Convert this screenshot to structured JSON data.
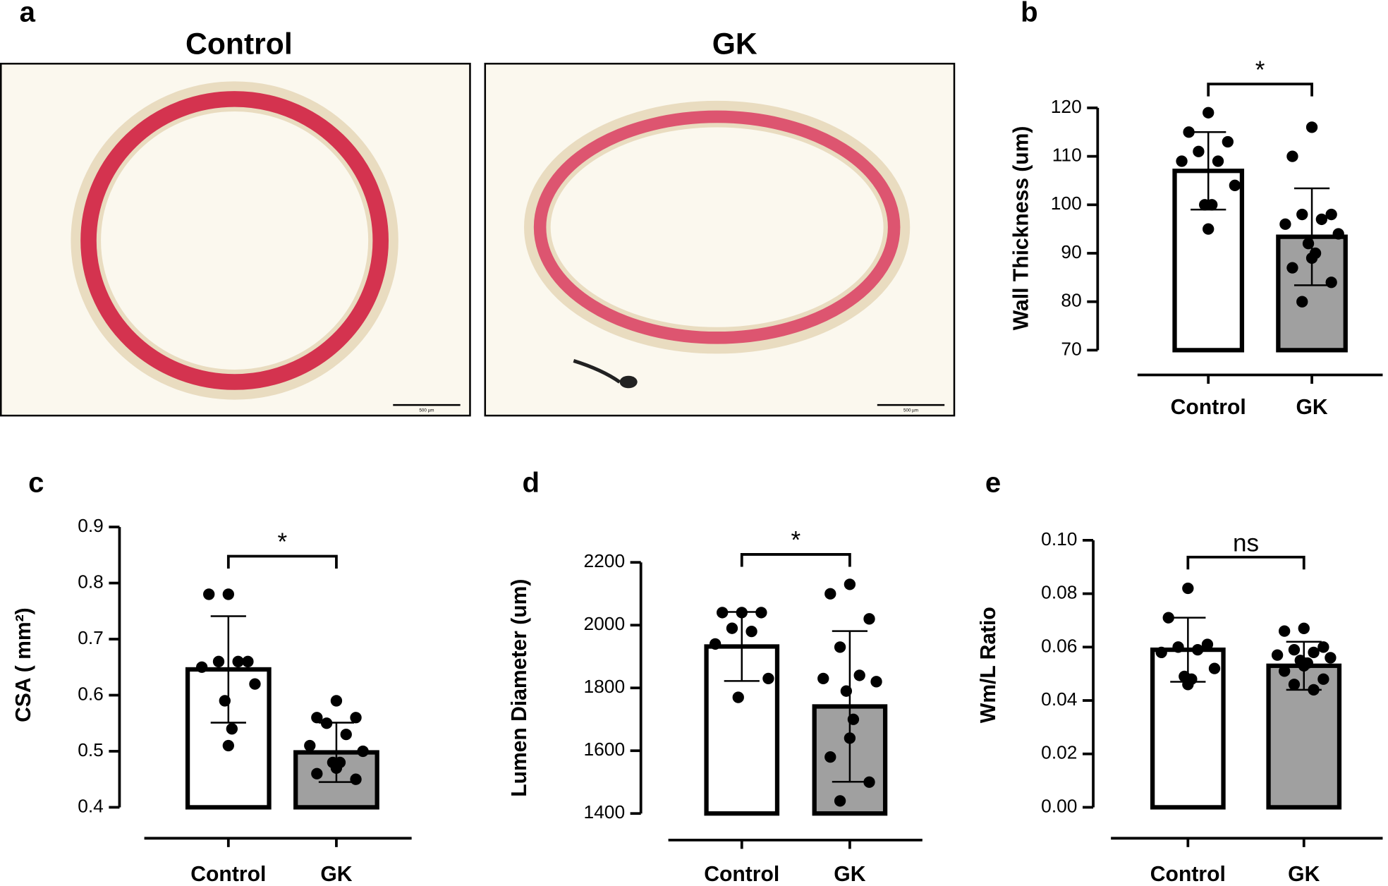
{
  "panel_a": {
    "label": "a",
    "titles": [
      "Control",
      "GK"
    ],
    "scale_bar": "500 µm"
  },
  "chart_data": [
    {
      "type": "bar",
      "panel": "b",
      "ylabel": "Wall Thickness (um)",
      "categories": [
        "Control",
        "GK"
      ],
      "values": [
        107,
        93.4
      ],
      "errors": [
        8,
        10
      ],
      "colors": [
        "#ffffff",
        "#a0a0a0"
      ],
      "point_color": "#000000",
      "points": [
        [
          119,
          115,
          113,
          111,
          109,
          109,
          104,
          100,
          100,
          95
        ],
        [
          116,
          110,
          98,
          98,
          97,
          96,
          94,
          92,
          90,
          89,
          87,
          84,
          80
        ]
      ],
      "ylim": [
        70,
        120
      ],
      "yticks": [
        70,
        80,
        90,
        100,
        110,
        120
      ],
      "significance": "*"
    },
    {
      "type": "bar",
      "panel": "c",
      "ylabel": "CSA ( mm²)",
      "categories": [
        "Control",
        "GK"
      ],
      "values": [
        0.646,
        0.498
      ],
      "errors": [
        0.095,
        0.053
      ],
      "colors": [
        "#ffffff",
        "#a0a0a0"
      ],
      "point_color": "#000000",
      "points": [
        [
          0.78,
          0.78,
          0.66,
          0.66,
          0.66,
          0.65,
          0.62,
          0.59,
          0.54,
          0.51
        ],
        [
          0.59,
          0.56,
          0.56,
          0.55,
          0.53,
          0.51,
          0.5,
          0.48,
          0.48,
          0.47,
          0.46,
          0.45
        ]
      ],
      "ylim": [
        0.4,
        0.9
      ],
      "yticks": [
        0.4,
        0.5,
        0.6,
        0.7,
        0.8,
        0.9
      ],
      "significance": "*"
    },
    {
      "type": "bar",
      "panel": "d",
      "ylabel": "Lumen Diameter (um)",
      "categories": [
        "Control",
        "GK"
      ],
      "values": [
        1932,
        1741
      ],
      "errors": [
        110,
        240
      ],
      "colors": [
        "#ffffff",
        "#a0a0a0"
      ],
      "point_color": "#000000",
      "points": [
        [
          2040,
          2040,
          2040,
          1990,
          1980,
          1940,
          1830,
          1770
        ],
        [
          2130,
          2100,
          2020,
          1930,
          1840,
          1830,
          1820,
          1790,
          1700,
          1640,
          1580,
          1500,
          1440
        ]
      ],
      "ylim": [
        1400,
        2200
      ],
      "yticks": [
        1400,
        1600,
        1800,
        2000,
        2200
      ],
      "significance": "*"
    },
    {
      "type": "bar",
      "panel": "e",
      "ylabel": "Wm/L Ratio",
      "categories": [
        "Control",
        "GK"
      ],
      "values": [
        0.059,
        0.053
      ],
      "errors": [
        0.012,
        0.009
      ],
      "colors": [
        "#ffffff",
        "#a0a0a0"
      ],
      "point_color": "#000000",
      "points": [
        [
          0.082,
          0.071,
          0.061,
          0.06,
          0.059,
          0.058,
          0.052,
          0.049,
          0.048,
          0.046
        ],
        [
          0.067,
          0.066,
          0.06,
          0.059,
          0.058,
          0.057,
          0.056,
          0.055,
          0.054,
          0.053,
          0.051,
          0.048,
          0.046,
          0.044
        ]
      ],
      "ylim": [
        0,
        0.1
      ],
      "yticks": [
        {
          "value": 0,
          "label": "0.00"
        },
        {
          "value": 0.02,
          "label": "0.02"
        },
        {
          "value": 0.04,
          "label": "0.04"
        },
        {
          "value": 0.06,
          "label": "0.06"
        },
        {
          "value": 0.08,
          "label": "0.08"
        },
        {
          "value": 0.1,
          "label": "0.10"
        }
      ],
      "significance": "ns"
    }
  ]
}
